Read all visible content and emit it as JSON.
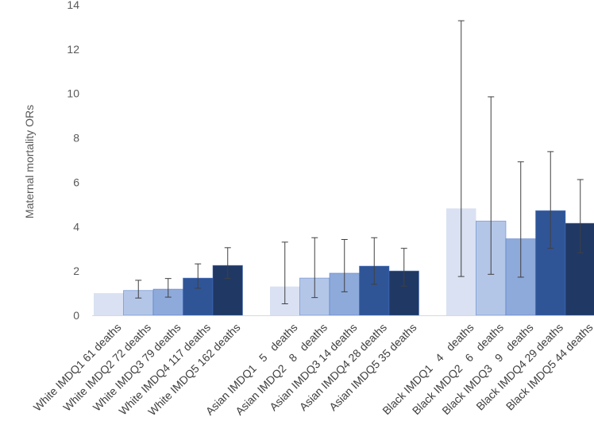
{
  "chart_data": {
    "type": "bar",
    "title": "",
    "xlabel": "",
    "ylabel": "Maternal mortality ORs",
    "ylim": [
      0,
      14
    ],
    "yticks": [
      0,
      2,
      4,
      6,
      8,
      10,
      12,
      14
    ],
    "grid": false,
    "legend": "none",
    "groups": [
      {
        "name": "White",
        "bars": [
          {
            "label": "White IMDQ1 61 deaths",
            "value": 1.0,
            "err_low": 1.0,
            "err_high": 1.0,
            "color": "#d9e1f2"
          },
          {
            "label": "White IMDQ2 72 deaths",
            "value": 1.12,
            "err_low": 0.78,
            "err_high": 1.58,
            "color": "#b4c6e7"
          },
          {
            "label": "White IMDQ3 79 deaths",
            "value": 1.18,
            "err_low": 0.82,
            "err_high": 1.66,
            "color": "#8eaadb"
          },
          {
            "label": "White IMDQ4 117 deaths",
            "value": 1.68,
            "err_low": 1.22,
            "err_high": 2.32,
            "color": "#2f5597"
          },
          {
            "label": "White IMDQ5 162 deaths",
            "value": 2.25,
            "err_low": 1.67,
            "err_high": 3.05,
            "color": "#203864"
          }
        ]
      },
      {
        "name": "Asian",
        "bars": [
          {
            "label": "Asian IMDQ1   5   deaths",
            "value": 1.3,
            "err_low": 0.52,
            "err_high": 3.3,
            "color": "#d9e1f2"
          },
          {
            "label": "Asian IMDQ2   8   deaths",
            "value": 1.68,
            "err_low": 0.8,
            "err_high": 3.5,
            "color": "#b4c6e7"
          },
          {
            "label": "Asian IMDQ3 14 deaths",
            "value": 1.9,
            "err_low": 1.06,
            "err_high": 3.42,
            "color": "#8eaadb"
          },
          {
            "label": "Asian IMDQ4 28 deaths",
            "value": 2.22,
            "err_low": 1.4,
            "err_high": 3.5,
            "color": "#2f5597"
          },
          {
            "label": "Asian IMDQ5 35 deaths",
            "value": 2.0,
            "err_low": 1.32,
            "err_high": 3.02,
            "color": "#203864"
          }
        ]
      },
      {
        "name": "Black",
        "bars": [
          {
            "label": "Black IMDQ1   4   deaths",
            "value": 4.82,
            "err_low": 1.75,
            "err_high": 13.28,
            "color": "#d9e1f2"
          },
          {
            "label": "Black IMDQ2   6   deaths",
            "value": 4.25,
            "err_low": 1.85,
            "err_high": 9.85,
            "color": "#b4c6e7"
          },
          {
            "label": "Black IMDQ3   9   deaths",
            "value": 3.45,
            "err_low": 1.72,
            "err_high": 6.92,
            "color": "#8eaadb"
          },
          {
            "label": "Black IMDQ4 29 deaths",
            "value": 4.72,
            "err_low": 3.02,
            "err_high": 7.38,
            "color": "#2f5597"
          },
          {
            "label": "Black IMDQ5 44 deaths",
            "value": 4.15,
            "err_low": 2.82,
            "err_high": 6.12,
            "color": "#203864"
          }
        ]
      }
    ]
  }
}
